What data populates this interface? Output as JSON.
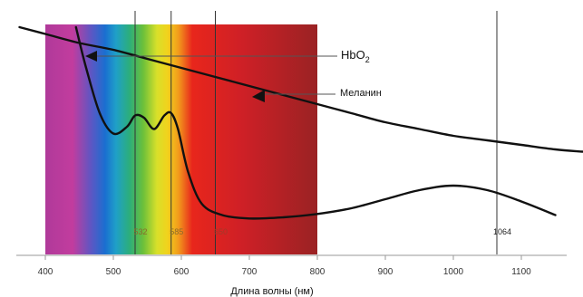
{
  "chart_data": {
    "type": "line",
    "xlabel": "Длина волны (нм)",
    "ylabel": "",
    "xlim": [
      360,
      1190
    ],
    "x_ticks": [
      400,
      500,
      600,
      700,
      800,
      900,
      1000,
      1100
    ],
    "grid": false,
    "spectrum_band": {
      "start": 400,
      "end": 800
    },
    "wavelength_markers": [
      {
        "x": 532,
        "label": "532",
        "label_color": "#8a6a2a"
      },
      {
        "x": 585,
        "label": "585",
        "label_color": "#8a6a2a"
      },
      {
        "x": 650,
        "label": "650",
        "label_color": "#a03a2a"
      },
      {
        "x": 1064,
        "label": "1064",
        "label_color": "#222222"
      }
    ],
    "series": [
      {
        "name": "HbO2",
        "label_main": "HbO",
        "label_sub": "2",
        "x": [
          445,
          460,
          480,
          500,
          520,
          532,
          545,
          560,
          575,
          585,
          595,
          610,
          630,
          660,
          700,
          750,
          800,
          850,
          900,
          950,
          1000,
          1050,
          1100,
          1150
        ],
        "y": [
          1.0,
          0.82,
          0.62,
          0.53,
          0.56,
          0.61,
          0.6,
          0.55,
          0.61,
          0.62,
          0.55,
          0.36,
          0.22,
          0.17,
          0.155,
          0.16,
          0.175,
          0.2,
          0.24,
          0.28,
          0.3,
          0.28,
          0.23,
          0.17
        ]
      },
      {
        "name": "Меланин",
        "x": [
          362,
          400,
          450,
          500,
          550,
          600,
          650,
          700,
          750,
          800,
          850,
          900,
          950,
          1000,
          1050,
          1100,
          1150,
          1190
        ],
        "y": [
          1.0,
          0.97,
          0.93,
          0.9,
          0.86,
          0.82,
          0.78,
          0.74,
          0.7,
          0.66,
          0.62,
          0.58,
          0.55,
          0.52,
          0.5,
          0.48,
          0.46,
          0.45
        ]
      }
    ]
  },
  "colors": {
    "curve": "#111111",
    "marker_line": "#333333",
    "axis": "#999999"
  }
}
